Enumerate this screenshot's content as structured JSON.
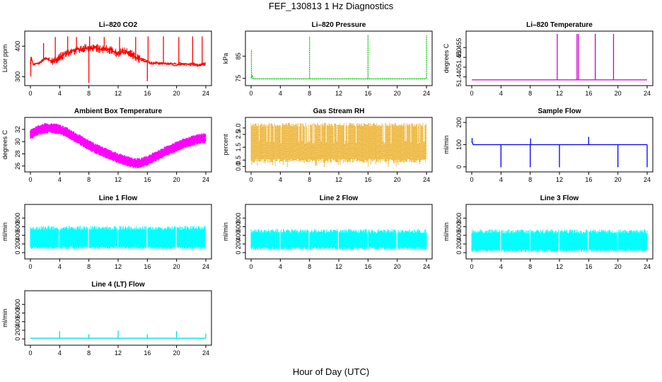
{
  "page_title": "FEF_130813  1 Hz Diagnostics",
  "x_caption": "Hour of Day (UTC)",
  "chart_data": [
    {
      "type": "line",
      "title": "Li-820 CO2",
      "ylabel": "Licor ppm",
      "color": "#ff0000",
      "xlim": [
        0,
        24
      ],
      "ylim": [
        280,
        440
      ],
      "xticks": [
        0,
        4,
        8,
        12,
        16,
        20,
        24
      ],
      "yticks": [
        300,
        400
      ],
      "series": [
        {
          "x": [
            0,
            0.1,
            0.4,
            0.8,
            1.2,
            1.6,
            2,
            2.4,
            2.8,
            3.2,
            3.6,
            4,
            4.4,
            4.8,
            5.2,
            5.6,
            6,
            6.4,
            6.8,
            7.2,
            7.6,
            8,
            8.4,
            8.8,
            9.2,
            9.6,
            10,
            10.4,
            10.8,
            11.2,
            11.6,
            12,
            12.4,
            12.8,
            13.2,
            13.6,
            14,
            14.4,
            14.8,
            15.2,
            15.6,
            16,
            16.4,
            16.8,
            17.2,
            17.6,
            18,
            18.4,
            18.8,
            19.2,
            19.6,
            20,
            20.4,
            20.8,
            21.2,
            21.6,
            22,
            22.4,
            22.8,
            23.2,
            23.6,
            24
          ],
          "y": [
            345,
            360,
            340,
            342,
            345,
            350,
            360,
            358,
            352,
            350,
            355,
            365,
            370,
            375,
            380,
            382,
            385,
            388,
            390,
            392,
            395,
            390,
            392,
            395,
            393,
            390,
            392,
            390,
            388,
            385,
            380,
            375,
            380,
            385,
            382,
            378,
            372,
            365,
            360,
            355,
            352,
            350,
            346,
            345,
            344,
            344,
            343,
            343,
            342,
            342,
            342,
            341,
            341,
            340,
            340,
            340,
            339,
            339,
            339,
            339,
            339,
            339
          ]
        }
      ],
      "spikes": [
        {
          "x": 0.05,
          "y": 300
        },
        {
          "x": 1.8,
          "y": 410
        },
        {
          "x": 2.3,
          "y": 360
        },
        {
          "x": 3.4,
          "y": 430
        },
        {
          "x": 5.1,
          "y": 432
        },
        {
          "x": 6.3,
          "y": 430
        },
        {
          "x": 8,
          "y": 280
        },
        {
          "x": 8.1,
          "y": 432
        },
        {
          "x": 10.1,
          "y": 430
        },
        {
          "x": 12.2,
          "y": 430
        },
        {
          "x": 14.4,
          "y": 430
        },
        {
          "x": 16,
          "y": 285
        },
        {
          "x": 16.1,
          "y": 432
        },
        {
          "x": 18.2,
          "y": 432
        },
        {
          "x": 20.3,
          "y": 430
        },
        {
          "x": 22.2,
          "y": 432
        },
        {
          "x": 23.5,
          "y": 432
        }
      ]
    },
    {
      "type": "line",
      "title": "Li-820 Pressure",
      "ylabel": "kPa",
      "color": "#00cc00",
      "xlim": [
        0,
        24
      ],
      "ylim": [
        73,
        95
      ],
      "xticks": [
        0,
        4,
        8,
        12,
        16,
        20,
        24
      ],
      "yticks": [
        75,
        85
      ],
      "series": [
        {
          "x": [
            0,
            0.15,
            0.3,
            1,
            4,
            8,
            12,
            16,
            20,
            23.9,
            24
          ],
          "y": [
            75,
            76,
            74.8,
            74.8,
            74.8,
            74.8,
            74.8,
            74.8,
            74.8,
            74.8,
            75
          ]
        }
      ],
      "spikes": [
        {
          "x": 0.05,
          "y": 88
        },
        {
          "x": 8,
          "y": 94
        },
        {
          "x": 16,
          "y": 94.5
        },
        {
          "x": 24,
          "y": 94.5
        }
      ]
    },
    {
      "type": "line",
      "title": "Li-820 Temperature",
      "ylabel": "degrees C",
      "color": "#cc00cc",
      "xlim": [
        0,
        24
      ],
      "ylim": [
        51.437,
        51.462
      ],
      "xticks": [
        0,
        4,
        8,
        12,
        16,
        20,
        24
      ],
      "yticks": [
        51.44,
        51.445,
        51.45,
        51.455
      ],
      "ytick_labels": [
        "51.440",
        "",
        "51.450",
        "51.455"
      ],
      "series": [
        {
          "x": [
            0,
            24
          ],
          "y": [
            51.4385,
            51.4385
          ]
        }
      ],
      "spikes": [
        {
          "x": 11.7,
          "y": 51.462
        },
        {
          "x": 14.4,
          "y": 51.462
        },
        {
          "x": 14.6,
          "y": 51.462
        },
        {
          "x": 16.9,
          "y": 51.462
        },
        {
          "x": 19.4,
          "y": 51.462
        }
      ]
    },
    {
      "type": "line",
      "title": "Ambient Box Temperature",
      "ylabel": "degrees C",
      "color": "#ff00ff",
      "xlim": [
        0,
        24
      ],
      "ylim": [
        25.5,
        33.5
      ],
      "xticks": [
        0,
        4,
        8,
        12,
        16,
        20,
        24
      ],
      "yticks": [
        26,
        28,
        30,
        32
      ],
      "series": [
        {
          "x": [
            0,
            1,
            2,
            3,
            4,
            5,
            6,
            7,
            8,
            9,
            10,
            11,
            12,
            13,
            14,
            15,
            16,
            17,
            18,
            19,
            20,
            21,
            22,
            23,
            24
          ],
          "y": [
            31.2,
            31.8,
            32.2,
            32.2,
            32,
            31.5,
            30.8,
            30.1,
            29.4,
            28.8,
            28.3,
            27.8,
            27.3,
            26.9,
            26.5,
            26.5,
            26.9,
            27.5,
            28.1,
            28.7,
            29.2,
            29.7,
            30.1,
            30.4,
            30.6
          ]
        }
      ],
      "band": 0.9
    },
    {
      "type": "line",
      "title": "Gas Stream RH",
      "ylabel": "percent",
      "color": "#e8a000",
      "xlim": [
        0,
        24
      ],
      "ylim": [
        -0.2,
        3.6
      ],
      "xticks": [
        0,
        4,
        8,
        12,
        16,
        20,
        24
      ],
      "yticks": [
        0.0,
        0.5,
        1.5,
        2.5,
        3.0
      ],
      "ytick_labels": [
        "0.0",
        "0.5",
        "1.5",
        "2.5",
        "3.0"
      ],
      "series": [
        {
          "x": [
            0,
            24
          ],
          "y": [
            0.3,
            0.3
          ]
        },
        {
          "x": [
            0,
            24
          ],
          "y": [
            3.4,
            3.4
          ]
        }
      ],
      "range_low": 0.3,
      "range_high": 3.4
    },
    {
      "type": "line",
      "title": "Sample Flow",
      "ylabel": "ml/min",
      "color": "#0000ee",
      "xlim": [
        0,
        24
      ],
      "ylim": [
        -10,
        210
      ],
      "xticks": [
        0,
        4,
        8,
        12,
        16,
        20,
        24
      ],
      "yticks": [
        0,
        100,
        200
      ],
      "series": [
        {
          "x": [
            0,
            0.2,
            24
          ],
          "y": [
            115,
            100,
            100
          ]
        }
      ],
      "spikes": [
        {
          "x": 4,
          "y": -2
        },
        {
          "x": 8,
          "y": -2
        },
        {
          "x": 8.05,
          "y": 128
        },
        {
          "x": 12,
          "y": -2
        },
        {
          "x": 16,
          "y": 135
        },
        {
          "x": 20,
          "y": -2
        },
        {
          "x": 24,
          "y": -2
        },
        {
          "x": 0.05,
          "y": 130
        }
      ]
    },
    {
      "type": "area",
      "title": "Line 1 Flow",
      "ylabel": "ml/min",
      "color": "#00ffff",
      "xlim": [
        0,
        24
      ],
      "ylim": [
        -80,
        1050
      ],
      "xticks": [
        0,
        4,
        8,
        12,
        16,
        20,
        24
      ],
      "yticks": [
        0,
        200,
        400,
        600,
        800
      ],
      "series": [
        {
          "x": [
            0,
            24
          ],
          "y": [
            600,
            600
          ]
        }
      ],
      "range_low": 80,
      "range_high": 620,
      "gaps": [
        3.95,
        7.95,
        11.95,
        15.95,
        19.95
      ]
    },
    {
      "type": "area",
      "title": "Line 2 Flow",
      "ylabel": "ml/min",
      "color": "#00ffff",
      "xlim": [
        0,
        24
      ],
      "ylim": [
        -80,
        1050
      ],
      "xticks": [
        0,
        4,
        8,
        12,
        16,
        20,
        24
      ],
      "yticks": [
        0,
        200,
        400,
        600,
        800
      ],
      "series": [
        {
          "x": [
            0,
            24
          ],
          "y": [
            550,
            550
          ]
        }
      ],
      "range_low": 60,
      "range_high": 550,
      "gaps": [
        3.95,
        7.95,
        11.95,
        15.95,
        19.95
      ]
    },
    {
      "type": "area",
      "title": "Line 3 Flow",
      "ylabel": "ml/min",
      "color": "#00ffff",
      "xlim": [
        0,
        24
      ],
      "ylim": [
        -80,
        1050
      ],
      "xticks": [
        0,
        4,
        8,
        12,
        16,
        20,
        24
      ],
      "yticks": [
        0,
        200,
        400,
        600,
        800
      ],
      "series": [
        {
          "x": [
            0,
            24
          ],
          "y": [
            520,
            520
          ]
        }
      ],
      "range_low": 10,
      "range_high": 540,
      "gaps": [
        3.95,
        7.95,
        11.95,
        15.95,
        19.95
      ]
    },
    {
      "type": "line",
      "title": "Line 4 (LT) Flow",
      "ylabel": "ml/min",
      "color": "#00e0e0",
      "xlim": [
        0,
        24
      ],
      "ylim": [
        -80,
        1050
      ],
      "xticks": [
        0,
        4,
        8,
        12,
        16,
        20,
        24
      ],
      "yticks": [
        0,
        200,
        400,
        600,
        800
      ],
      "series": [
        {
          "x": [
            0,
            24
          ],
          "y": [
            15,
            15
          ]
        }
      ],
      "spikes": [
        {
          "x": 4,
          "y": 180
        },
        {
          "x": 8,
          "y": 110
        },
        {
          "x": 12,
          "y": 190
        },
        {
          "x": 16,
          "y": 110
        },
        {
          "x": 20,
          "y": 180
        },
        {
          "x": 24,
          "y": 120
        }
      ]
    }
  ]
}
